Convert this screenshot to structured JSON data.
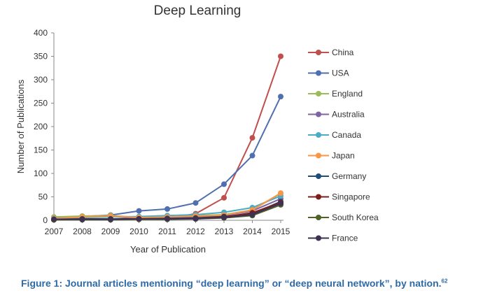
{
  "chart_data": {
    "type": "line",
    "title": "Deep Learning",
    "xlabel": "Year of Publication",
    "ylabel": "Number of Publications",
    "x": [
      2007,
      2008,
      2009,
      2010,
      2011,
      2012,
      2013,
      2014,
      2015
    ],
    "ylim": [
      0,
      400
    ],
    "yticks": [
      0,
      50,
      100,
      150,
      200,
      250,
      300,
      350,
      400
    ],
    "grid": false,
    "legend_position": "right",
    "series": [
      {
        "name": "China",
        "color": "#c0504d",
        "values": [
          2,
          3,
          3,
          3,
          4,
          14,
          48,
          176,
          350
        ]
      },
      {
        "name": "USA",
        "color": "#4f6fb0",
        "values": [
          5,
          8,
          11,
          20,
          24,
          37,
          77,
          138,
          264
        ]
      },
      {
        "name": "England",
        "color": "#9bbb59",
        "values": [
          7,
          9,
          10,
          6,
          6,
          10,
          12,
          22,
          57
        ]
      },
      {
        "name": "Australia",
        "color": "#8064a2",
        "values": [
          3,
          6,
          8,
          4,
          5,
          8,
          10,
          20,
          46
        ]
      },
      {
        "name": "Canada",
        "color": "#4bacc6",
        "values": [
          5,
          6,
          7,
          8,
          10,
          12,
          17,
          27,
          52
        ]
      },
      {
        "name": "Japan",
        "color": "#f79646",
        "values": [
          4,
          7,
          9,
          6,
          7,
          9,
          11,
          22,
          58
        ]
      },
      {
        "name": "Germany",
        "color": "#1f4e79",
        "values": [
          2,
          3,
          3,
          3,
          4,
          5,
          8,
          14,
          40
        ]
      },
      {
        "name": "Singapore",
        "color": "#7a1f1a",
        "values": [
          1,
          2,
          2,
          2,
          3,
          4,
          7,
          16,
          38
        ]
      },
      {
        "name": "South Korea",
        "color": "#4f6228",
        "values": [
          1,
          1,
          1,
          2,
          2,
          3,
          5,
          10,
          33
        ]
      },
      {
        "name": "France",
        "color": "#3f3151",
        "values": [
          2,
          2,
          2,
          3,
          3,
          3,
          6,
          12,
          36
        ]
      }
    ]
  },
  "caption": {
    "text": "Figure 1: Journal articles mentioning “deep learning” or “deep neural network”, by nation.",
    "superscript": "62"
  }
}
